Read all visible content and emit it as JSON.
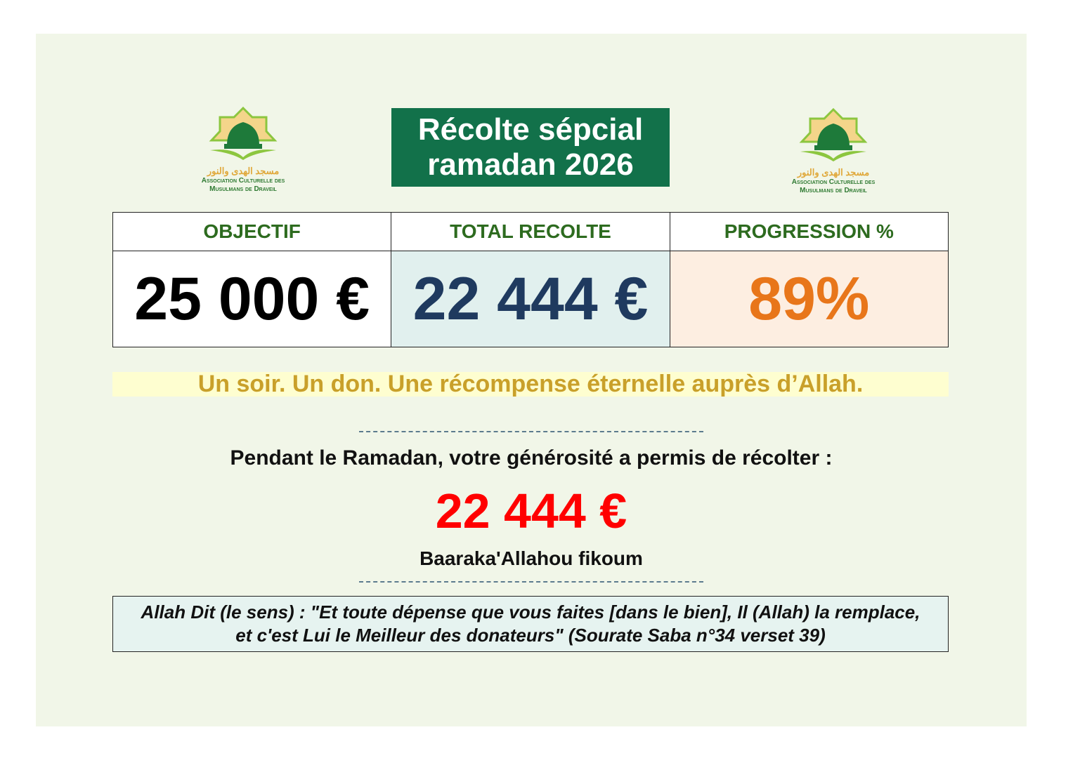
{
  "logo": {
    "arabic": "مسجد الهدى والنور",
    "line1": "Association Culturelle des",
    "line2": "Musulmans de Draveil"
  },
  "title": {
    "line1": "Récolte sépcial",
    "line2": "ramadan 2026"
  },
  "table": {
    "headers": [
      "OBJECTIF",
      "TOTAL RECOLTE",
      "PROGRESSION %"
    ],
    "values": [
      "25 000 €",
      "22 444 €",
      "89%"
    ]
  },
  "progress_percent": 89,
  "slogan": "Un soir. Un don. Une récompense éternelle auprès d’Allah.",
  "message": {
    "intro": "Pendant le Ramadan, votre générosité a permis de récolter :",
    "amount": "22 444 €",
    "blessing": "Baaraka'Allahou fikoum"
  },
  "quote": {
    "line1": "Allah Dit (le sens) : \"Et toute dépense que vous faites [dans le bien], Il (Allah) la remplace,",
    "line2": "et c'est Lui le Meilleur des donateurs\"  (Sourate Saba n°34 verset 39)"
  },
  "colors": {
    "background": "#f1f6e8",
    "title_bg": "#12714a",
    "header_text": "#2d6b1f",
    "total": "#1f3a5f",
    "progress": "#e8761a",
    "slogan": "#c9a02a",
    "amount": "#ff0000"
  }
}
